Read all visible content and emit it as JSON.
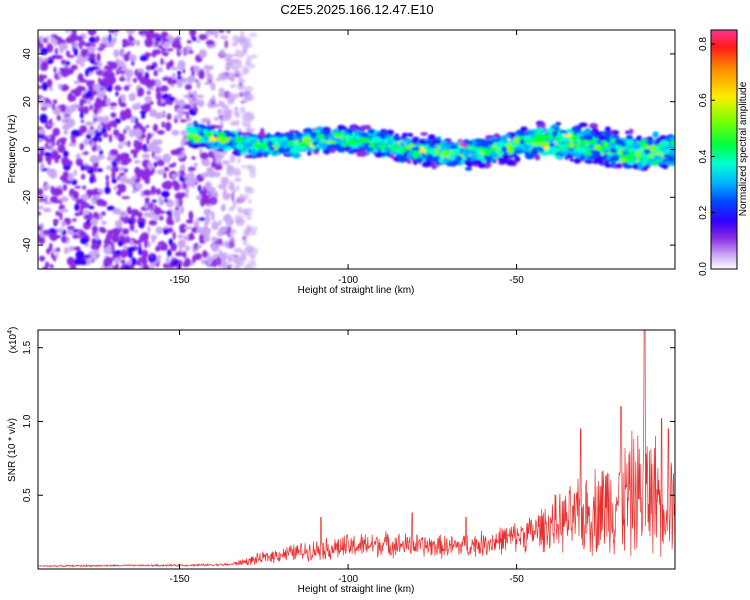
{
  "title": "C2E5.2025.166.12.47.E10",
  "colors": {
    "snr_line": "#e8302e",
    "colormap": [
      "#ffffff",
      "#d9b8f5",
      "#9b30ff",
      "#6a00f0",
      "#2400ff",
      "#0050ff",
      "#00c8ff",
      "#00ffc0",
      "#00ff3c",
      "#8cff00",
      "#ffee00",
      "#ff8c00",
      "#ff2020",
      "#ff3399"
    ]
  },
  "chart_data": [
    {
      "type": "heatmap",
      "title": "C2E5.2025.166.12.47.E10",
      "xlabel": "Height of straight line (km)",
      "ylabel": "Frequency (Hz)",
      "xlim": [
        -192,
        -3
      ],
      "ylim": [
        -50,
        50
      ],
      "x_ticks": [
        -150,
        -100,
        -50
      ],
      "x_tick_labels": [
        "-150",
        "-100",
        "-50"
      ],
      "y_ticks": [
        -40,
        -20,
        0,
        20,
        40
      ],
      "y_tick_labels": [
        "-40",
        "-20",
        "0",
        "20",
        "40"
      ],
      "colorbar": {
        "label": "Normalized spectral amplitude",
        "range": [
          0,
          0.85
        ],
        "ticks": [
          0.0,
          0.2,
          0.4,
          0.6,
          0.8
        ],
        "tick_labels": [
          "0.0",
          "0.2",
          "0.4",
          "0.6",
          "0.8"
        ]
      },
      "noise_region": {
        "x": [
          -192,
          -128
        ],
        "y": [
          -50,
          50
        ],
        "amplitude": [
          0.02,
          0.12
        ]
      },
      "signal_band": {
        "x": [
          -147,
          -60,
          -30,
          -3
        ],
        "center_freq": [
          5,
          0,
          2,
          0
        ],
        "half_width": [
          4,
          5,
          7,
          6
        ],
        "peak_amplitude": 0.85,
        "peak_x": -66,
        "peak_freq": 2
      }
    },
    {
      "type": "line",
      "xlabel": "Height of straight line (km)",
      "ylabel": "SNR (10 * v/v)",
      "y_scale_label": "(x10",
      "y_scale_exponent": "4",
      "y_scale_suffix": ")",
      "xlim": [
        -192,
        -3
      ],
      "ylim": [
        0,
        1.62
      ],
      "x_ticks": [
        -150,
        -100,
        -50
      ],
      "x_tick_labels": [
        "-150",
        "-100",
        "-50"
      ],
      "y_ticks": [
        0.5,
        1.0,
        1.5
      ],
      "y_tick_labels": [
        "0.5",
        "1.0",
        "1.5"
      ],
      "series": [
        {
          "envelope_x": [
            -192,
            -150,
            -135,
            -128,
            -120,
            -110,
            -100,
            -90,
            -80,
            -70,
            -60,
            -50,
            -45,
            -40,
            -35,
            -30,
            -25,
            -20,
            -15,
            -10,
            -5,
            -3
          ],
          "envelope_mid": [
            0.02,
            0.025,
            0.03,
            0.06,
            0.1,
            0.13,
            0.15,
            0.17,
            0.16,
            0.15,
            0.17,
            0.22,
            0.25,
            0.3,
            0.33,
            0.36,
            0.42,
            0.46,
            0.5,
            0.52,
            0.48,
            0.45
          ],
          "envelope_amp": [
            0.006,
            0.008,
            0.01,
            0.04,
            0.06,
            0.08,
            0.1,
            0.1,
            0.09,
            0.09,
            0.1,
            0.12,
            0.15,
            0.2,
            0.25,
            0.3,
            0.38,
            0.42,
            0.5,
            0.48,
            0.42,
            0.4
          ],
          "peaks": [
            {
              "x": -108,
              "y": 0.35
            },
            {
              "x": -81,
              "y": 0.38
            },
            {
              "x": -65,
              "y": 0.35
            },
            {
              "x": -31,
              "y": 0.95
            },
            {
              "x": -19,
              "y": 1.1
            },
            {
              "x": -12,
              "y": 1.62
            },
            {
              "x": -7,
              "y": 1.02
            },
            {
              "x": -5,
              "y": 0.95
            }
          ]
        }
      ]
    }
  ]
}
